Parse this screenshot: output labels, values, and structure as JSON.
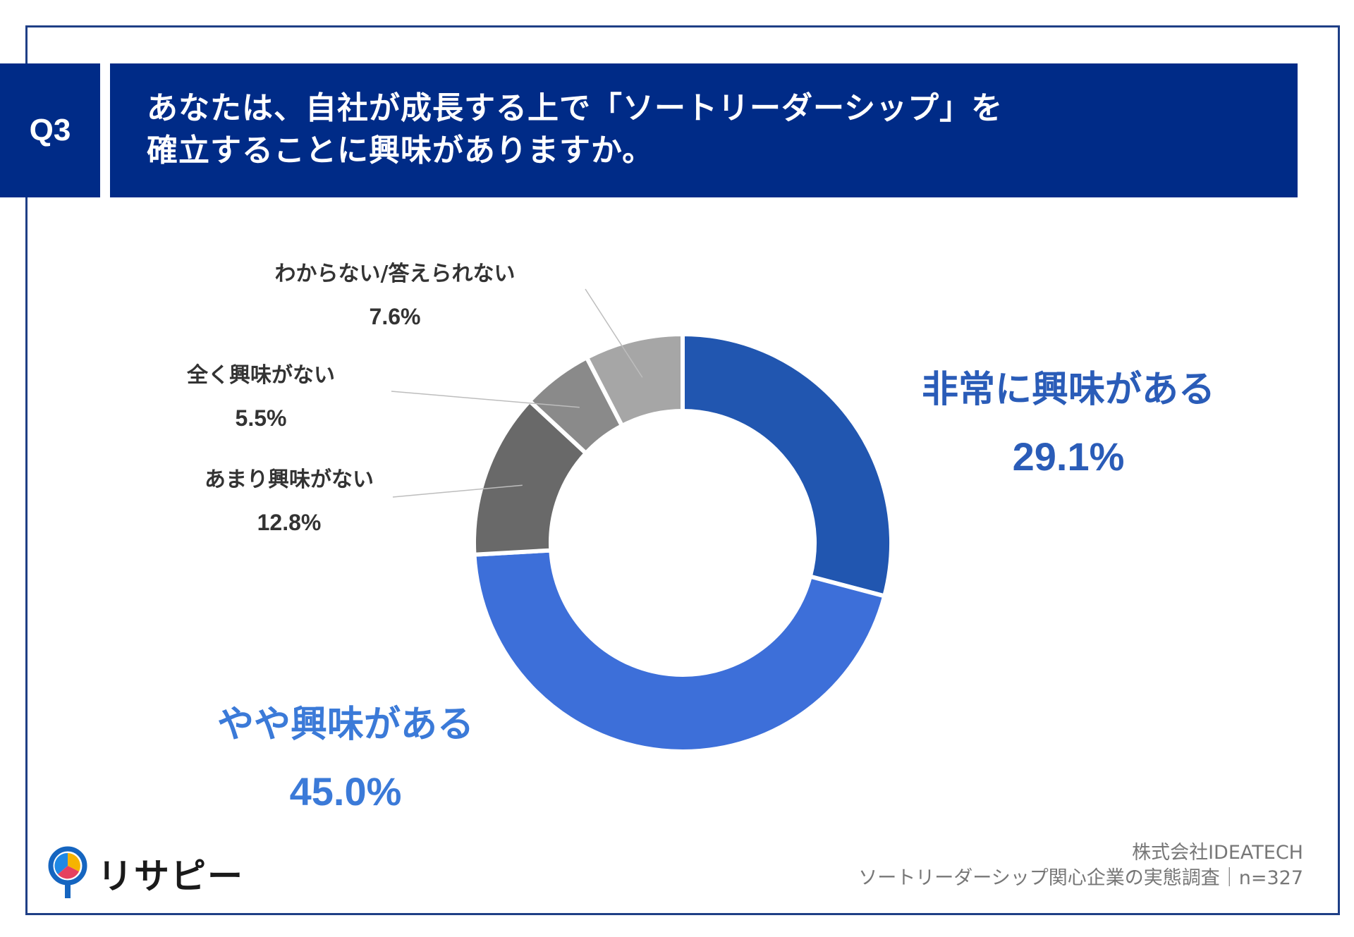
{
  "header": {
    "badge": "Q3",
    "title_line1": "あなたは、自社が成長する上で「ソートリーダーシップ」を",
    "title_line2": "確立することに興味がありますか。"
  },
  "chart_data": {
    "type": "pie",
    "style": "donut",
    "title": "あなたは、自社が成長する上で「ソートリーダーシップ」を確立することに興味がありますか。",
    "categories": [
      "非常に興味がある",
      "やや興味がある",
      "あまり興味がない",
      "全く興味がない",
      "わからない/答えられない"
    ],
    "values": [
      29.1,
      45.0,
      12.8,
      5.5,
      7.6
    ],
    "labels": [
      "29.1%",
      "45.0%",
      "12.8%",
      "5.5%",
      "7.6%"
    ],
    "colors": [
      "#2156b0",
      "#3d6fd9",
      "#696969",
      "#8a8a8a",
      "#a6a6a6"
    ],
    "unit": "%"
  },
  "footer": {
    "logo_text": "リサピー",
    "source_line1": "株式会社IDEATECH",
    "source_line2": "ソートリーダーシップ関心企業の実態調査｜n=327"
  }
}
